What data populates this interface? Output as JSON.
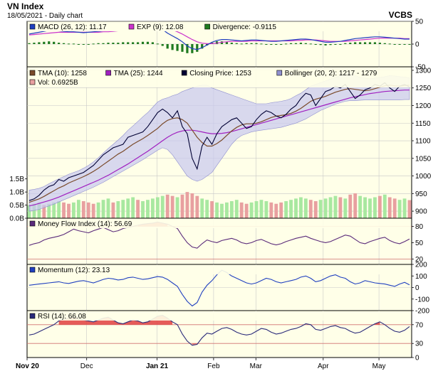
{
  "header": {
    "title": "VN Index",
    "subtitle": "18/05/2021 - Daily chart",
    "brand": "VCBS"
  },
  "colors": {
    "panel_bg": "#ffffe8",
    "border": "#000000",
    "grid": "#c8c8c8",
    "macd": "#1f3fbf",
    "exp": "#cc33cc",
    "divergence": "#1f7a1f",
    "tma10": "#7a4a2a",
    "tma25": "#a020c0",
    "close": "#000033",
    "bollinger_fill": "#c8c8f0",
    "bollinger_line": "#9090d0",
    "vol_up": "#a8e8a0",
    "vol_down": "#e8a0a0",
    "mfi": "#5a2a7a",
    "momentum": "#2040c0",
    "rsi": "#2a2a7a",
    "overbought_fill": "#e04040",
    "ref_line": "#d07070"
  },
  "x_axis": {
    "labels": [
      "Nov 20",
      "Dec",
      "Jan 21",
      "Feb",
      "Mar",
      "Apr",
      "May"
    ]
  },
  "chart_data": [
    {
      "id": "macd",
      "type": "line",
      "legend": [
        {
          "label": "MACD (26, 12): 11.17",
          "color": "#1f3fbf"
        },
        {
          "label": "EXP (9): 12.08",
          "color": "#cc33cc"
        },
        {
          "label": "Divergence: -0.9115",
          "color": "#1f7a1f"
        }
      ],
      "y_ticks": [
        "50",
        "0",
        "-50"
      ],
      "ylim": [
        -50,
        50
      ],
      "macd": [
        22,
        24,
        26,
        28,
        30,
        30,
        29,
        28,
        27,
        27,
        26,
        25,
        26,
        27,
        28,
        29,
        30,
        31,
        32,
        33,
        34,
        35,
        36,
        38,
        40,
        40,
        38,
        32,
        24,
        18,
        12,
        5,
        -4,
        -10,
        -12,
        -8,
        -2,
        4,
        8,
        10,
        10,
        9,
        8,
        7,
        8,
        9,
        9,
        8,
        7,
        6,
        6,
        7,
        8,
        9,
        10,
        11,
        11,
        10,
        8,
        6,
        4,
        4,
        5,
        6,
        8,
        10,
        12,
        13,
        14,
        15,
        16,
        16,
        15,
        14,
        13,
        12,
        11,
        11
      ],
      "exp": [
        20,
        21,
        22,
        23,
        24,
        25,
        26,
        26,
        26,
        26,
        26,
        26,
        26,
        26,
        26,
        27,
        27,
        28,
        29,
        29,
        30,
        31,
        32,
        33,
        35,
        36,
        37,
        36,
        34,
        31,
        27,
        22,
        16,
        10,
        5,
        2,
        1,
        1,
        2,
        4,
        5,
        6,
        6,
        6,
        6,
        7,
        7,
        7,
        7,
        7,
        7,
        7,
        7,
        7,
        8,
        8,
        9,
        9,
        9,
        8,
        7,
        6,
        6,
        6,
        6,
        7,
        8,
        9,
        10,
        11,
        12,
        13,
        13,
        13,
        13,
        13,
        12,
        12
      ]
    },
    {
      "id": "price",
      "type": "line",
      "legend": [
        {
          "label": "TMA (10): 1258",
          "color": "#7a4a2a"
        },
        {
          "label": "TMA (25): 1244",
          "color": "#a020c0"
        },
        {
          "label": "Closing Price: 1253",
          "color": "#000033"
        },
        {
          "label": "Bollinger (20, 2): 1217 - 1279",
          "color": "#9090d0"
        },
        {
          "label": "Vol: 0.6925B",
          "color": "#e8a0a0"
        }
      ],
      "y_ticks": [
        "1300",
        "1250",
        "1200",
        "1150",
        "1100",
        "1050",
        "1000",
        "950",
        "900"
      ],
      "ylim": [
        880,
        1310
      ],
      "vol_ticks": [
        "1.5B",
        "1.0B",
        "0.5B",
        "0.0B"
      ],
      "vol_lim": [
        0,
        1.6
      ],
      "close": [
        930,
        935,
        945,
        960,
        970,
        975,
        990,
        985,
        995,
        1000,
        1005,
        1010,
        1020,
        1030,
        1045,
        1060,
        1070,
        1080,
        1085,
        1090,
        1110,
        1115,
        1120,
        1125,
        1140,
        1160,
        1180,
        1190,
        1180,
        1165,
        1185,
        1140,
        1120,
        1050,
        1020,
        1085,
        1110,
        1090,
        1120,
        1140,
        1150,
        1160,
        1165,
        1150,
        1135,
        1140,
        1160,
        1175,
        1185,
        1180,
        1170,
        1165,
        1175,
        1190,
        1200,
        1220,
        1235,
        1230,
        1200,
        1220,
        1240,
        1245,
        1255,
        1250,
        1260,
        1240,
        1220,
        1230,
        1245,
        1250,
        1260,
        1255,
        1265,
        1250,
        1240,
        1255,
        1260,
        1253
      ],
      "tma10": [
        925,
        930,
        935,
        942,
        950,
        958,
        966,
        972,
        980,
        986,
        992,
        998,
        1005,
        1013,
        1022,
        1032,
        1042,
        1052,
        1062,
        1070,
        1080,
        1090,
        1098,
        1106,
        1115,
        1125,
        1135,
        1148,
        1158,
        1163,
        1165,
        1160,
        1150,
        1130,
        1110,
        1095,
        1085,
        1085,
        1092,
        1102,
        1115,
        1128,
        1138,
        1145,
        1148,
        1148,
        1150,
        1154,
        1160,
        1166,
        1170,
        1172,
        1174,
        1178,
        1184,
        1192,
        1202,
        1212,
        1218,
        1222,
        1226,
        1232,
        1238,
        1242,
        1246,
        1248,
        1246,
        1244,
        1242,
        1244,
        1248,
        1252,
        1256,
        1258,
        1256,
        1255,
        1257,
        1258
      ],
      "tma25": [
        915,
        918,
        922,
        926,
        930,
        935,
        940,
        946,
        952,
        958,
        964,
        970,
        976,
        982,
        988,
        995,
        1002,
        1010,
        1018,
        1026,
        1034,
        1043,
        1052,
        1061,
        1070,
        1080,
        1090,
        1100,
        1110,
        1118,
        1124,
        1128,
        1130,
        1130,
        1128,
        1125,
        1122,
        1120,
        1120,
        1121,
        1123,
        1126,
        1130,
        1134,
        1138,
        1142,
        1146,
        1150,
        1154,
        1158,
        1162,
        1166,
        1170,
        1174,
        1178,
        1182,
        1186,
        1190,
        1194,
        1198,
        1202,
        1206,
        1210,
        1214,
        1218,
        1222,
        1225,
        1228,
        1231,
        1234,
        1236,
        1238,
        1240,
        1241,
        1242,
        1243,
        1244,
        1244
      ],
      "boll_upper": [
        960,
        962,
        965,
        970,
        978,
        985,
        992,
        998,
        1005,
        1010,
        1015,
        1022,
        1030,
        1040,
        1052,
        1065,
        1078,
        1090,
        1102,
        1115,
        1130,
        1142,
        1155,
        1168,
        1180,
        1195,
        1210,
        1218,
        1222,
        1228,
        1232,
        1240,
        1245,
        1250,
        1255,
        1258,
        1258,
        1250,
        1245,
        1240,
        1235,
        1230,
        1225,
        1220,
        1215,
        1210,
        1205,
        1205,
        1205,
        1208,
        1210,
        1212,
        1215,
        1220,
        1228,
        1235,
        1245,
        1255,
        1260,
        1265,
        1270,
        1275,
        1280,
        1285,
        1290,
        1290,
        1285,
        1280,
        1278,
        1276,
        1278,
        1280,
        1282,
        1285,
        1284,
        1282,
        1281,
        1279
      ],
      "boll_lower": [
        900,
        902,
        905,
        910,
        915,
        920,
        926,
        932,
        938,
        944,
        950,
        956,
        962,
        968,
        975,
        982,
        990,
        998,
        1006,
        1014,
        1022,
        1030,
        1038,
        1046,
        1055,
        1064,
        1073,
        1080,
        1075,
        1060,
        1040,
        1020,
        1000,
        990,
        985,
        990,
        1000,
        1010,
        1030,
        1050,
        1070,
        1090,
        1105,
        1115,
        1120,
        1125,
        1128,
        1130,
        1132,
        1134,
        1136,
        1138,
        1142,
        1146,
        1150,
        1156,
        1162,
        1170,
        1178,
        1186,
        1192,
        1198,
        1204,
        1208,
        1212,
        1214,
        1214,
        1215,
        1216,
        1216,
        1216,
        1216,
        1216,
        1216,
        1216,
        1216,
        1217,
        1217
      ],
      "volume": [
        0.5,
        0.55,
        0.6,
        0.5,
        0.55,
        0.6,
        0.65,
        0.6,
        0.55,
        0.6,
        0.7,
        0.65,
        0.6,
        0.55,
        0.6,
        0.7,
        0.75,
        0.6,
        0.65,
        0.7,
        0.75,
        0.8,
        0.7,
        0.65,
        0.7,
        0.75,
        0.8,
        0.85,
        0.9,
        0.85,
        0.8,
        0.9,
        1.0,
        0.95,
        0.85,
        0.75,
        0.7,
        0.65,
        0.6,
        0.55,
        0.6,
        0.65,
        0.7,
        0.6,
        0.55,
        0.6,
        0.65,
        0.7,
        0.65,
        0.6,
        0.55,
        0.6,
        0.65,
        0.7,
        0.75,
        0.8,
        0.75,
        0.7,
        0.65,
        0.7,
        0.75,
        0.8,
        0.85,
        0.8,
        0.75,
        0.9,
        0.95,
        0.85,
        0.8,
        0.75,
        0.8,
        0.85,
        0.9,
        0.8,
        0.75,
        0.7,
        0.75,
        0.69
      ],
      "volume_down": [
        false,
        false,
        false,
        true,
        false,
        false,
        false,
        true,
        true,
        false,
        false,
        true,
        true,
        true,
        false,
        false,
        false,
        true,
        false,
        false,
        false,
        false,
        true,
        false,
        false,
        false,
        false,
        false,
        true,
        true,
        false,
        true,
        true,
        true,
        true,
        false,
        false,
        true,
        false,
        false,
        false,
        false,
        false,
        true,
        true,
        false,
        false,
        false,
        false,
        true,
        true,
        true,
        false,
        false,
        false,
        false,
        false,
        true,
        true,
        false,
        false,
        false,
        false,
        true,
        false,
        true,
        true,
        false,
        false,
        false,
        false,
        true,
        false,
        true,
        true,
        false,
        false,
        true
      ]
    },
    {
      "id": "mfi",
      "type": "line",
      "legend": [
        {
          "label": "Money Flow Index (14): 56.69",
          "color": "#5a2a7a"
        }
      ],
      "y_ticks": [
        "80",
        "50",
        "20"
      ],
      "ylim": [
        10,
        95
      ],
      "threshold_high": 80,
      "threshold_low": 20,
      "values": [
        45,
        48,
        50,
        55,
        58,
        60,
        62,
        65,
        70,
        75,
        72,
        70,
        68,
        72,
        75,
        78,
        74,
        70,
        72,
        76,
        78,
        80,
        82,
        84,
        85,
        86,
        88,
        86,
        84,
        80,
        76,
        62,
        50,
        42,
        40,
        48,
        55,
        52,
        50,
        54,
        56,
        58,
        55,
        50,
        48,
        50,
        54,
        56,
        52,
        48,
        46,
        48,
        52,
        55,
        58,
        60,
        62,
        58,
        55,
        52,
        50,
        52,
        56,
        60,
        64,
        62,
        56,
        50,
        48,
        52,
        55,
        58,
        60,
        54,
        50,
        48,
        52,
        56.69
      ]
    },
    {
      "id": "momentum",
      "type": "line",
      "legend": [
        {
          "label": "Momentum (12): 23.13",
          "color": "#2040c0"
        }
      ],
      "y_ticks": [
        "200",
        "100",
        "0",
        "-100",
        "-200"
      ],
      "ylim": [
        -200,
        200
      ],
      "values": [
        20,
        25,
        30,
        35,
        40,
        45,
        50,
        40,
        35,
        45,
        55,
        60,
        50,
        40,
        55,
        70,
        80,
        75,
        65,
        70,
        85,
        90,
        80,
        70,
        75,
        85,
        95,
        90,
        70,
        40,
        10,
        -60,
        -120,
        -160,
        -130,
        -40,
        20,
        60,
        110,
        150,
        130,
        100,
        80,
        60,
        40,
        30,
        40,
        60,
        80,
        70,
        50,
        40,
        50,
        60,
        70,
        90,
        100,
        80,
        50,
        60,
        80,
        100,
        110,
        90,
        80,
        50,
        30,
        40,
        60,
        50,
        40,
        35,
        30,
        20,
        10,
        30,
        45,
        23.13
      ]
    },
    {
      "id": "rsi",
      "type": "line",
      "legend": [
        {
          "label": "RSI (14): 66.08",
          "color": "#2a2a7a"
        }
      ],
      "y_ticks": [
        "70",
        "30",
        "0"
      ],
      "ylim": [
        0,
        100
      ],
      "threshold_high": 70,
      "threshold_low": 30,
      "values": [
        48,
        50,
        55,
        60,
        65,
        70,
        78,
        82,
        84,
        85,
        83,
        80,
        78,
        76,
        80,
        84,
        86,
        80,
        74,
        72,
        76,
        80,
        78,
        74,
        76,
        82,
        88,
        90,
        84,
        76,
        70,
        50,
        35,
        26,
        28,
        42,
        52,
        50,
        56,
        62,
        64,
        60,
        54,
        50,
        48,
        50,
        56,
        62,
        60,
        54,
        50,
        52,
        56,
        60,
        62,
        66,
        72,
        70,
        60,
        58,
        62,
        66,
        68,
        64,
        62,
        56,
        52,
        54,
        60,
        66,
        72,
        76,
        70,
        62,
        56,
        54,
        58,
        66.08
      ]
    }
  ]
}
